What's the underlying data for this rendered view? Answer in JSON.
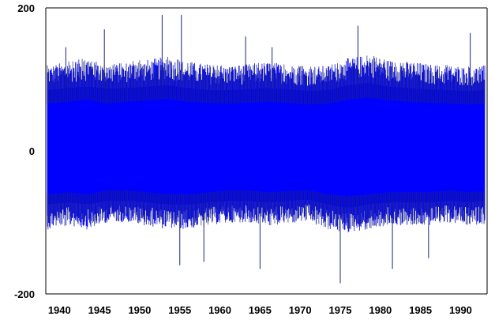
{
  "chart_data": {
    "type": "line",
    "title": "",
    "xlabel": "",
    "ylabel": "",
    "series_color": "#0000ff",
    "spike_color": "#1a237e",
    "xlim": [
      1938.3,
      1993.3
    ],
    "ylim": [
      -200,
      200
    ],
    "x_ticks": [
      {
        "value": 1940,
        "label": "1940"
      },
      {
        "value": 1945,
        "label": "1945"
      },
      {
        "value": 1950,
        "label": "1950"
      },
      {
        "value": 1955,
        "label": "1955"
      },
      {
        "value": 1960,
        "label": "1960"
      },
      {
        "value": 1965,
        "label": "1965"
      },
      {
        "value": 1970,
        "label": "1970"
      },
      {
        "value": 1975,
        "label": "1975"
      },
      {
        "value": 1980,
        "label": "1980"
      },
      {
        "value": 1985,
        "label": "1985"
      },
      {
        "value": 1990,
        "label": "1990"
      }
    ],
    "y_ticks": [
      {
        "value": 200,
        "label": "200"
      },
      {
        "value": 0,
        "label": "0"
      },
      {
        "value": -200,
        "label": "-200"
      }
    ],
    "grid": false,
    "legend": "none",
    "series": [
      {
        "x": [
          1938.5,
          1941,
          1943.5,
          1946,
          1948.5,
          1951,
          1953.5,
          1956,
          1958.5,
          1961,
          1963.5,
          1966,
          1968.5,
          1971,
          1973.5,
          1976,
          1978.5,
          1981,
          1983.5,
          1986,
          1988.5,
          1991,
          1993
        ],
        "upper": [
          120,
          125,
          130,
          120,
          125,
          128,
          132,
          125,
          122,
          120,
          122,
          125,
          122,
          118,
          120,
          130,
          135,
          128,
          125,
          122,
          120,
          118,
          120
        ],
        "lower": [
          -110,
          -105,
          -110,
          -100,
          -100,
          -105,
          -110,
          -110,
          -105,
          -100,
          -100,
          -105,
          -102,
          -100,
          -110,
          -115,
          -110,
          -105,
          -105,
          -105,
          -100,
          -105,
          -102
        ],
        "band_upper": [
          85,
          88,
          90,
          87,
          88,
          90,
          92,
          88,
          85,
          85,
          86,
          88,
          86,
          84,
          85,
          92,
          95,
          90,
          88,
          86,
          85,
          84,
          85
        ],
        "band_lower": [
          -75,
          -72,
          -75,
          -70,
          -70,
          -72,
          -75,
          -75,
          -72,
          -70,
          -70,
          -72,
          -70,
          -68,
          -75,
          -80,
          -75,
          -72,
          -72,
          -72,
          -70,
          -72,
          -70
        ],
        "spikes": [
          {
            "x": 1940.8,
            "y": 145
          },
          {
            "x": 1945.6,
            "y": 170
          },
          {
            "x": 1952.8,
            "y": 190
          },
          {
            "x": 1955.2,
            "y": 190
          },
          {
            "x": 1963.2,
            "y": 160
          },
          {
            "x": 1966.5,
            "y": 145
          },
          {
            "x": 1977.2,
            "y": 175
          },
          {
            "x": 1991.2,
            "y": 165
          },
          {
            "x": 1955,
            "y": -160
          },
          {
            "x": 1958,
            "y": -155
          },
          {
            "x": 1965,
            "y": -165
          },
          {
            "x": 1975,
            "y": -185
          },
          {
            "x": 1981.5,
            "y": -165
          },
          {
            "x": 1986,
            "y": -150
          }
        ]
      }
    ]
  }
}
